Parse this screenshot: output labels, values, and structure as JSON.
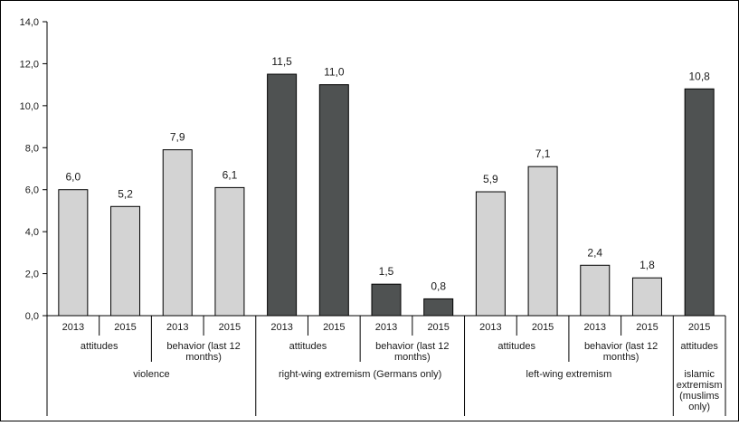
{
  "chart_data": {
    "type": "bar",
    "title": "",
    "xlabel": "",
    "ylabel": "",
    "ylim": [
      0,
      14
    ],
    "yticks": [
      "0,0",
      "2,0",
      "4,0",
      "6,0",
      "8,0",
      "10,0",
      "12,0",
      "14,0"
    ],
    "grid": false,
    "legend": "none",
    "colors": {
      "light": "#d3d3d3",
      "dark": "#4f5252",
      "outline": "#000000"
    },
    "bars": [
      {
        "year": "2013",
        "value": 6.0,
        "label": "6,0",
        "shade": "light"
      },
      {
        "year": "2015",
        "value": 5.2,
        "label": "5,2",
        "shade": "light"
      },
      {
        "year": "2013",
        "value": 7.9,
        "label": "7,9",
        "shade": "light"
      },
      {
        "year": "2015",
        "value": 6.1,
        "label": "6,1",
        "shade": "light"
      },
      {
        "year": "2013",
        "value": 11.5,
        "label": "11,5",
        "shade": "dark"
      },
      {
        "year": "2015",
        "value": 11.0,
        "label": "11,0",
        "shade": "dark"
      },
      {
        "year": "2013",
        "value": 1.5,
        "label": "1,5",
        "shade": "dark"
      },
      {
        "year": "2015",
        "value": 0.8,
        "label": "0,8",
        "shade": "dark"
      },
      {
        "year": "2013",
        "value": 5.9,
        "label": "5,9",
        "shade": "light"
      },
      {
        "year": "2015",
        "value": 7.1,
        "label": "7,1",
        "shade": "light"
      },
      {
        "year": "2013",
        "value": 2.4,
        "label": "2,4",
        "shade": "light"
      },
      {
        "year": "2015",
        "value": 1.8,
        "label": "1,8",
        "shade": "light"
      },
      {
        "year": "2015",
        "value": 10.8,
        "label": "10,8",
        "shade": "dark"
      }
    ],
    "subgroups": [
      {
        "label": [
          "attitudes"
        ],
        "span": [
          0,
          1
        ]
      },
      {
        "label": [
          "behavior (last 12",
          "months)"
        ],
        "span": [
          2,
          3
        ]
      },
      {
        "label": [
          "attitudes"
        ],
        "span": [
          4,
          5
        ]
      },
      {
        "label": [
          "behavior (last 12",
          "months)"
        ],
        "span": [
          6,
          7
        ]
      },
      {
        "label": [
          "attitudes"
        ],
        "span": [
          8,
          9
        ]
      },
      {
        "label": [
          "behavior (last 12",
          "months)"
        ],
        "span": [
          10,
          11
        ]
      },
      {
        "label": [
          "attitudes"
        ],
        "span": [
          12,
          12
        ]
      }
    ],
    "groups": [
      {
        "label": [
          "violence"
        ],
        "span": [
          0,
          3
        ]
      },
      {
        "label": [
          "right-wing extremism (Germans only)"
        ],
        "span": [
          4,
          7
        ]
      },
      {
        "label": [
          "left-wing extremism"
        ],
        "span": [
          8,
          11
        ]
      },
      {
        "label": [
          "islamic",
          "extremism",
          "(muslims",
          "only)"
        ],
        "span": [
          12,
          12
        ]
      }
    ]
  }
}
